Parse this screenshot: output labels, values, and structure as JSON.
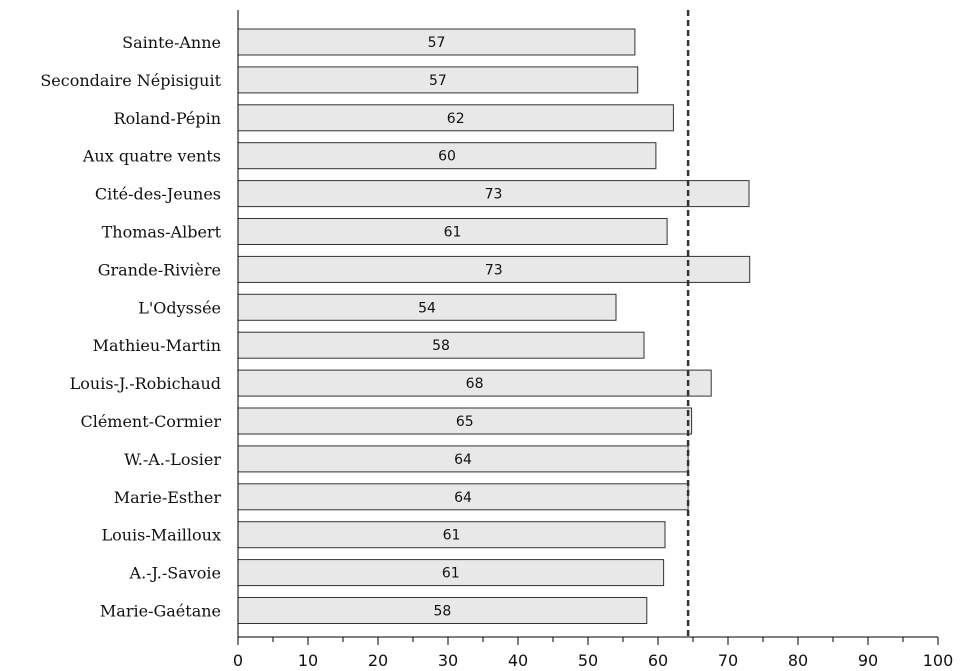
{
  "chart_data": {
    "type": "bar",
    "orientation": "horizontal",
    "title": "",
    "xlabel": "",
    "ylabel": "",
    "xlim": [
      0,
      100
    ],
    "x_ticks": [
      0,
      10,
      20,
      30,
      40,
      50,
      60,
      70,
      80,
      90,
      100
    ],
    "grid": false,
    "categories": [
      "Sainte-Anne",
      "Secondaire Népisiguit",
      "Roland-Pépin",
      "Aux quatre vents",
      "Cité-des-Jeunes",
      "Thomas-Albert",
      "Grande-Rivière",
      "L'Odyssée",
      "Mathieu-Martin",
      "Louis-J.-Robichaud",
      "Clément-Cormier",
      "W.-A.-Losier",
      "Marie-Esther",
      "Louis-Mailloux",
      "A.-J.-Savoie",
      "Marie-Gaétane"
    ],
    "values": [
      56.7,
      57.1,
      62.2,
      59.7,
      73.0,
      61.3,
      73.1,
      54.0,
      58.0,
      67.6,
      64.8,
      64.3,
      64.3,
      61.0,
      60.8,
      58.4
    ],
    "value_labels": [
      "57",
      "57",
      "62",
      "60",
      "73",
      "61",
      "73",
      "54",
      "58",
      "68",
      "65",
      "64",
      "64",
      "61",
      "61",
      "58"
    ],
    "reference_line": {
      "value": 64.3,
      "style": "dashed"
    },
    "colors": {
      "bar_fill": "#e8e8e8",
      "bar_stroke": "#333333",
      "axis": "#000000",
      "reference_line": "#333333"
    }
  }
}
